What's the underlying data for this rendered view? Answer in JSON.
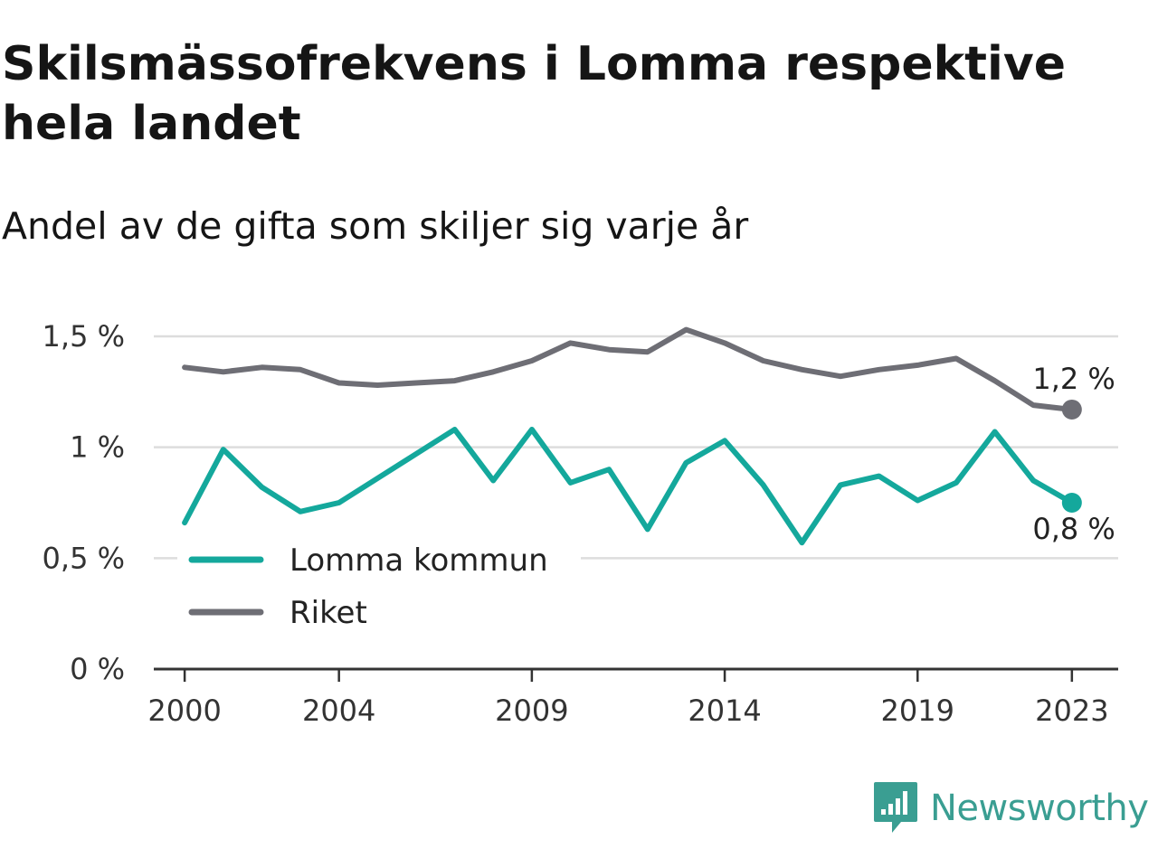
{
  "header": {
    "title": "Skilsmässofrekvens i Lomma respektive hela landet",
    "subtitle": "Andel av de gifta som skiljer sig varje år"
  },
  "brand": {
    "name": "Newsworthy",
    "color": "#3a9e92"
  },
  "colors": {
    "lomma": "#14a89c",
    "riket": "#6e6e75",
    "grid": "#dddddd",
    "axis": "#333333"
  },
  "chart_data": {
    "type": "line",
    "title": "Skilsmässofrekvens i Lomma respektive hela landet",
    "subtitle": "Andel av de gifta som skiljer sig varje år",
    "xlabel": "",
    "ylabel": "",
    "x": [
      2000,
      2001,
      2002,
      2003,
      2004,
      2005,
      2006,
      2007,
      2008,
      2009,
      2010,
      2011,
      2012,
      2013,
      2014,
      2015,
      2016,
      2017,
      2018,
      2019,
      2020,
      2021,
      2022,
      2023
    ],
    "x_ticks": [
      "2000",
      "2004",
      "2009",
      "2014",
      "2019",
      "2023"
    ],
    "x_tick_values": [
      2000,
      2004,
      2009,
      2014,
      2019,
      2023
    ],
    "xlim": [
      1999.2,
      2024.2
    ],
    "ylim": [
      0,
      1.5
    ],
    "y_ticks": [
      0,
      0.5,
      1,
      1.5
    ],
    "y_tick_labels": [
      "0 %",
      "0,5 %",
      "1 %",
      "1,5 %"
    ],
    "grid": true,
    "legend_position": "bottom-left",
    "series": [
      {
        "name": "Lomma kommun",
        "color": "#14a89c",
        "values": [
          0.66,
          0.99,
          0.82,
          0.71,
          0.75,
          0.86,
          0.97,
          1.08,
          0.85,
          1.08,
          0.84,
          0.9,
          0.63,
          0.93,
          1.03,
          0.83,
          0.57,
          0.83,
          0.87,
          0.76,
          0.84,
          1.07,
          0.85,
          0.75
        ],
        "end_label": "0,8 %"
      },
      {
        "name": "Riket",
        "color": "#6e6e75",
        "values": [
          1.36,
          1.34,
          1.36,
          1.35,
          1.29,
          1.28,
          1.29,
          1.3,
          1.34,
          1.39,
          1.47,
          1.44,
          1.43,
          1.53,
          1.47,
          1.39,
          1.35,
          1.32,
          1.35,
          1.37,
          1.4,
          1.3,
          1.19,
          1.17
        ],
        "end_label": "1,2 %"
      }
    ]
  }
}
